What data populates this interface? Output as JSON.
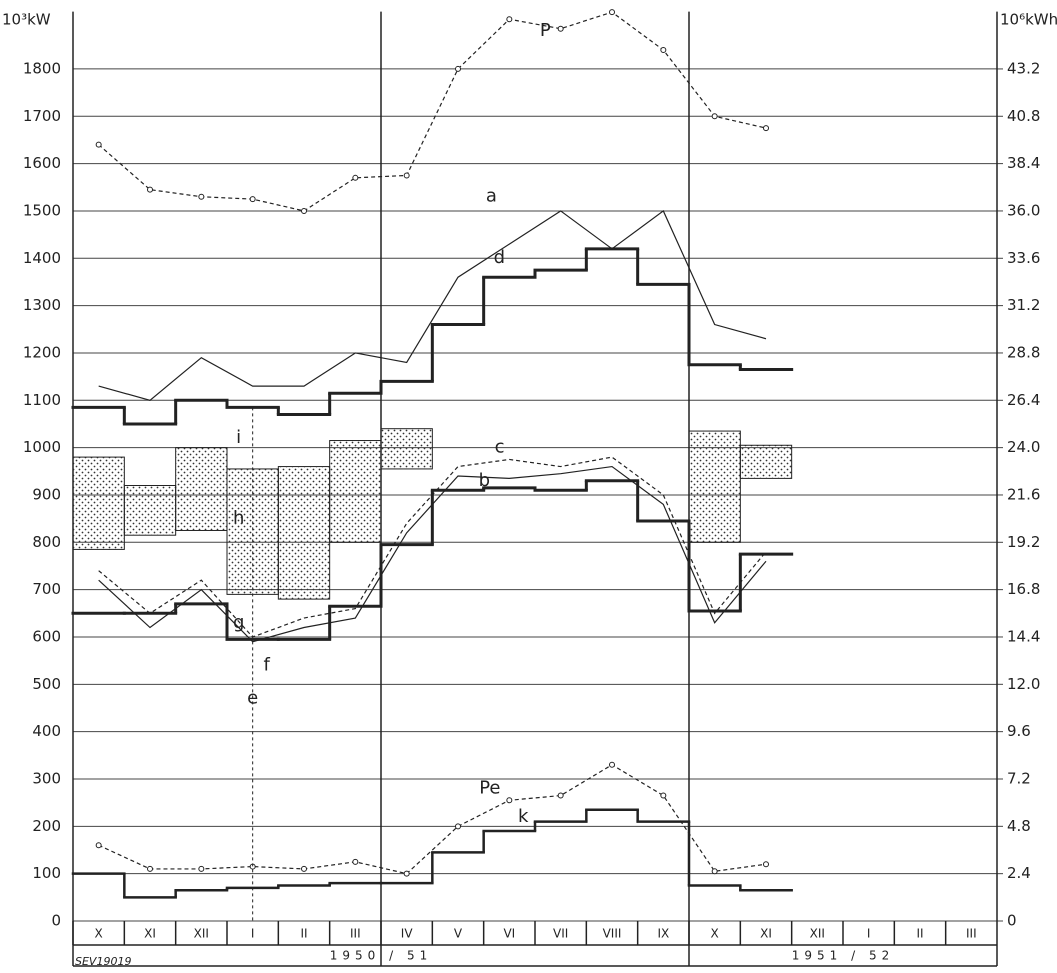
{
  "chart_data": {
    "type": "line",
    "y_label": "10³kW",
    "y2_label": "10⁶kWh",
    "categories": [
      "X",
      "XI",
      "XII",
      "I",
      "II",
      "III",
      "IV",
      "V",
      "VI",
      "VII",
      "VIII",
      "IX",
      "X",
      "XI",
      "XII",
      "I",
      "II",
      "III"
    ],
    "periods": [
      "1950 / 51",
      "1951 / 52"
    ],
    "ylim": [
      0,
      1900
    ],
    "yticks": [
      0,
      100,
      200,
      300,
      400,
      500,
      600,
      700,
      800,
      900,
      1000,
      1100,
      1200,
      1300,
      1400,
      1500,
      1600,
      1700,
      1800
    ],
    "y2lim": [
      0,
      45.6
    ],
    "y2ticks": [
      0,
      2.4,
      4.8,
      7.2,
      9.6,
      {
        "value": 12.0,
        "label": "12.0"
      },
      14.4,
      16.8,
      19.2,
      21.6,
      {
        "value": 24.0,
        "label": "24.0"
      },
      26.4,
      28.8,
      31.2,
      33.6,
      {
        "value": 36.0,
        "label": "36.0"
      },
      38.4,
      40.8,
      43.2
    ],
    "grid": true,
    "band": {
      "top": [
        980,
        920,
        1000,
        955,
        960,
        1015,
        1040,
        null,
        null,
        null,
        null,
        null,
        1035,
        1005,
        null,
        null,
        null,
        null
      ],
      "bottom": [
        785,
        815,
        825,
        690,
        680,
        800,
        955,
        null,
        null,
        null,
        null,
        null,
        800,
        935,
        null,
        null,
        null,
        null
      ]
    },
    "series": [
      {
        "name": "P",
        "style": "line",
        "dashed": true,
        "markers": true,
        "color": "#222",
        "values": [
          1640,
          1545,
          1530,
          1525,
          1500,
          1570,
          1575,
          1800,
          1905,
          1885,
          1920,
          1840,
          1700,
          1675,
          null,
          null,
          null,
          null
        ]
      },
      {
        "name": "a",
        "style": "line",
        "dashed": false,
        "markers": false,
        "color": "#222",
        "values": [
          1130,
          1100,
          1190,
          1130,
          1130,
          1200,
          1180,
          1360,
          1430,
          1500,
          1420,
          1500,
          1260,
          1230,
          null,
          null,
          null,
          null
        ]
      },
      {
        "name": "d",
        "style": "step",
        "width": 3,
        "color": "#222",
        "values": [
          1085,
          1050,
          1100,
          1085,
          1070,
          1115,
          1140,
          1260,
          1360,
          1375,
          1420,
          1345,
          1175,
          1165,
          null,
          null,
          null,
          null
        ]
      },
      {
        "name": "c",
        "style": "line",
        "dashed": true,
        "markers": false,
        "color": "#222",
        "values": [
          740,
          650,
          720,
          600,
          640,
          660,
          840,
          960,
          975,
          960,
          980,
          900,
          650,
          780,
          null,
          null,
          null,
          null
        ]
      },
      {
        "name": "b",
        "style": "line",
        "dashed": false,
        "markers": false,
        "color": "#222",
        "values": [
          720,
          620,
          700,
          590,
          620,
          640,
          820,
          940,
          935,
          945,
          960,
          880,
          630,
          760,
          null,
          null,
          null,
          null
        ]
      },
      {
        "style": "step",
        "width": 3,
        "color": "#222",
        "values": [
          650,
          650,
          670,
          595,
          595,
          665,
          795,
          910,
          915,
          910,
          930,
          845,
          655,
          775,
          null,
          null,
          null,
          null
        ]
      },
      {
        "name": "Pe",
        "style": "line",
        "dashed": true,
        "markers": true,
        "color": "#222",
        "values": [
          160,
          110,
          110,
          115,
          110,
          125,
          100,
          200,
          255,
          265,
          330,
          265,
          105,
          120,
          null,
          null,
          null,
          null
        ]
      },
      {
        "name": "k",
        "style": "step",
        "width": 2.5,
        "color": "#222",
        "values": [
          100,
          50,
          65,
          70,
          75,
          80,
          80,
          145,
          190,
          210,
          235,
          210,
          75,
          65,
          null,
          null,
          null,
          null
        ]
      }
    ],
    "annotations": [
      "i",
      "h",
      "g",
      "f",
      "e"
    ],
    "footnote": "SEV19019"
  }
}
